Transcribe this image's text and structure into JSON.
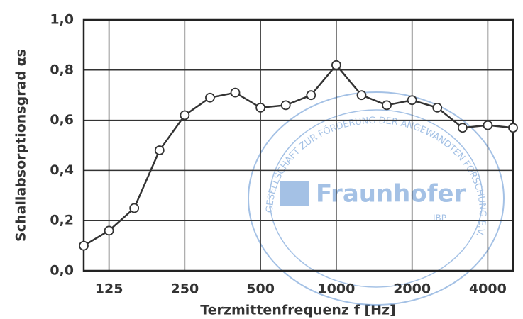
{
  "chart_data": {
    "type": "line",
    "x_label": "Terzmittenfrequenz f [Hz]",
    "y_label": "Schallabsorptionsgrad αs",
    "categories": [
      null,
      "125",
      null,
      null,
      "250",
      null,
      null,
      "500",
      null,
      null,
      "1000",
      null,
      null,
      "2000",
      null,
      null,
      "4000",
      null
    ],
    "series": [
      {
        "name": null,
        "color": "#333333",
        "values": [
          0.1,
          0.16,
          0.25,
          0.48,
          0.62,
          0.69,
          0.71,
          0.65,
          0.66,
          0.7,
          0.82,
          0.7,
          0.66,
          0.68,
          0.65,
          0.57,
          0.58,
          0.57
        ]
      }
    ],
    "ylim": [
      0,
      1
    ],
    "yticks": [
      {
        "value": 0,
        "label": "0,0"
      },
      {
        "value": 0.2,
        "label": "0,2"
      },
      {
        "value": 0.4,
        "label": "0,4"
      },
      {
        "value": 0.6,
        "label": "0,6"
      },
      {
        "value": 0.8,
        "label": "0,8"
      },
      {
        "value": 1,
        "label": "1,0"
      }
    ],
    "grid": true,
    "annotations": [
      "Fraunhofer",
      "IBP",
      "GESELLSCHAFT ZUR FÖRDERUNG DER ANGEWANDTEN FORSCHUNG E.V."
    ]
  }
}
